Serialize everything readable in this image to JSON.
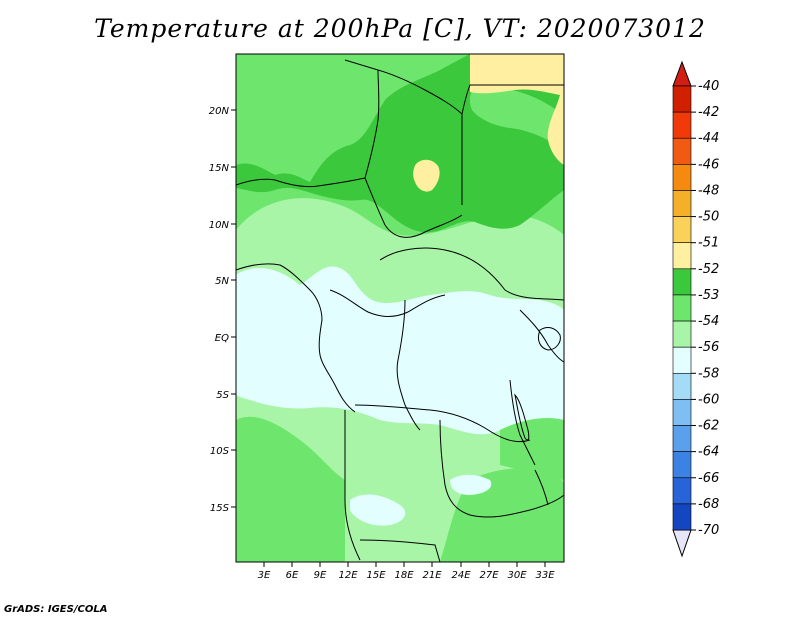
{
  "title": "Temperature at 200hPa [C], VT: 2020073012",
  "credit": "GrADS: IGES/COLA",
  "map": {
    "lat_ticks": [
      "20N",
      "15N",
      "10N",
      "5N",
      "EQ",
      "5S",
      "10S",
      "15S"
    ],
    "lon_ticks": [
      "3E",
      "6E",
      "9E",
      "12E",
      "15E",
      "18E",
      "21E",
      "24E",
      "27E",
      "30E",
      "33E"
    ]
  },
  "colorbar": {
    "levels": [
      {
        "label": "-40",
        "color": "#d02000"
      },
      {
        "label": "-42",
        "color": "#f03a0a"
      },
      {
        "label": "-44",
        "color": "#f05a12"
      },
      {
        "label": "-46",
        "color": "#f58a10"
      },
      {
        "label": "-48",
        "color": "#f5b02a"
      },
      {
        "label": "-50",
        "color": "#fad25a"
      },
      {
        "label": "-51",
        "color": "#fef0a0"
      },
      {
        "label": "-52",
        "color": "#3cc83c"
      },
      {
        "label": "-53",
        "color": "#6ee66e"
      },
      {
        "label": "-54",
        "color": "#a8f5a8"
      },
      {
        "label": "-56",
        "color": "#e2fefe"
      },
      {
        "label": "-58",
        "color": "#a4dcf8"
      },
      {
        "label": "-60",
        "color": "#7ebef2"
      },
      {
        "label": "-62",
        "color": "#5aa0ec"
      },
      {
        "label": "-64",
        "color": "#3c82e4"
      },
      {
        "label": "-66",
        "color": "#2864d8"
      },
      {
        "label": "-68",
        "color": "#1446c0"
      },
      {
        "label": "-70",
        "color": "#0a1a8c"
      }
    ],
    "top_arrow_color": "#d21e14",
    "bottom_arrow_color": "#e6e6f8"
  },
  "colors": {
    "yellow": "#fef0a0",
    "dark_green": "#3cc83c",
    "green": "#6ee66e",
    "light_green": "#a8f5a8",
    "cyan": "#e2fefe"
  }
}
